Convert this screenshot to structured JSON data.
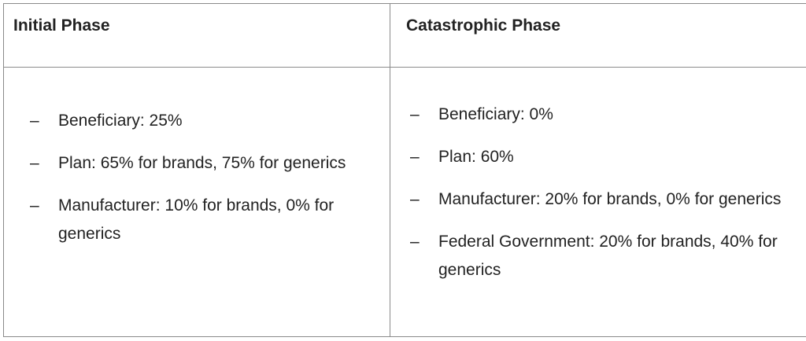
{
  "table": {
    "headers": [
      "Initial Phase",
      "Catastrophic Phase"
    ],
    "rows": [
      [
        [
          "Beneficiary: 25%",
          "Plan: 65% for brands, 75% for generics",
          "Manufacturer: 10% for brands, 0% for generics"
        ],
        [
          "Beneficiary: 0%",
          "Plan: 60%",
          "Manufacturer: 20% for brands, 0% for generics",
          "Federal Government: 20% for brands, 40% for generics"
        ]
      ]
    ]
  }
}
